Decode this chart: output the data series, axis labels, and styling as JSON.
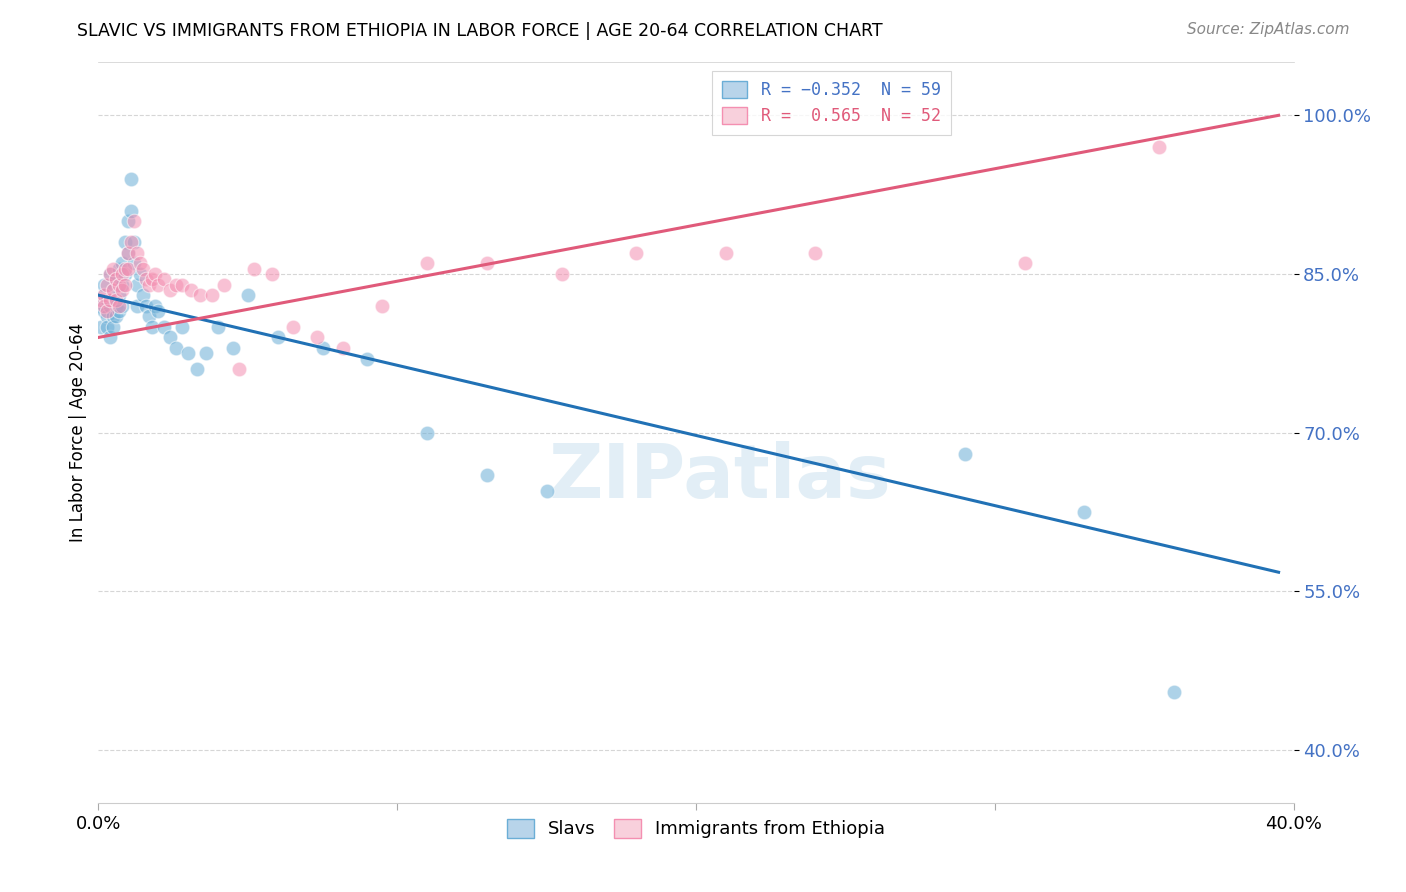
{
  "title": "SLAVIC VS IMMIGRANTS FROM ETHIOPIA IN LABOR FORCE | AGE 20-64 CORRELATION CHART",
  "source": "Source: ZipAtlas.com",
  "ylabel": "In Labor Force | Age 20-64",
  "ytick_values": [
    0.4,
    0.55,
    0.7,
    0.85,
    1.0
  ],
  "ytick_labels": [
    "40.0%",
    "55.0%",
    "70.0%",
    "85.0%",
    "100.0%"
  ],
  "xlim": [
    0.0,
    0.4
  ],
  "ylim": [
    0.35,
    1.05
  ],
  "slavs_color": "#6baed6",
  "ethiopia_color": "#f48fb1",
  "watermark": "ZIPatlas",
  "blue_line": {
    "x0": 0.0,
    "y0": 0.83,
    "x1": 0.395,
    "y1": 0.568
  },
  "pink_line": {
    "x0": 0.0,
    "y0": 0.79,
    "x1": 0.395,
    "y1": 1.0
  },
  "slavs_x": [
    0.001,
    0.001,
    0.002,
    0.002,
    0.002,
    0.003,
    0.003,
    0.003,
    0.004,
    0.004,
    0.004,
    0.005,
    0.005,
    0.005,
    0.006,
    0.006,
    0.006,
    0.007,
    0.007,
    0.007,
    0.008,
    0.008,
    0.008,
    0.009,
    0.009,
    0.01,
    0.01,
    0.011,
    0.011,
    0.012,
    0.012,
    0.013,
    0.013,
    0.014,
    0.015,
    0.016,
    0.017,
    0.018,
    0.019,
    0.02,
    0.022,
    0.024,
    0.026,
    0.028,
    0.03,
    0.033,
    0.036,
    0.04,
    0.045,
    0.05,
    0.06,
    0.075,
    0.09,
    0.11,
    0.13,
    0.15,
    0.29,
    0.33,
    0.36
  ],
  "slavs_y": [
    0.82,
    0.8,
    0.815,
    0.83,
    0.84,
    0.825,
    0.81,
    0.8,
    0.85,
    0.82,
    0.79,
    0.835,
    0.81,
    0.8,
    0.845,
    0.82,
    0.81,
    0.855,
    0.83,
    0.815,
    0.86,
    0.84,
    0.82,
    0.88,
    0.85,
    0.9,
    0.87,
    0.94,
    0.91,
    0.88,
    0.86,
    0.84,
    0.82,
    0.85,
    0.83,
    0.82,
    0.81,
    0.8,
    0.82,
    0.815,
    0.8,
    0.79,
    0.78,
    0.8,
    0.775,
    0.76,
    0.775,
    0.8,
    0.78,
    0.83,
    0.79,
    0.78,
    0.77,
    0.7,
    0.66,
    0.645,
    0.68,
    0.625,
    0.455
  ],
  "ethiopia_x": [
    0.001,
    0.002,
    0.002,
    0.003,
    0.003,
    0.004,
    0.004,
    0.005,
    0.005,
    0.006,
    0.006,
    0.007,
    0.007,
    0.008,
    0.008,
    0.009,
    0.009,
    0.01,
    0.01,
    0.011,
    0.012,
    0.013,
    0.014,
    0.015,
    0.016,
    0.017,
    0.018,
    0.019,
    0.02,
    0.022,
    0.024,
    0.026,
    0.028,
    0.031,
    0.034,
    0.038,
    0.042,
    0.047,
    0.052,
    0.058,
    0.065,
    0.073,
    0.082,
    0.095,
    0.11,
    0.13,
    0.155,
    0.18,
    0.21,
    0.24,
    0.31,
    0.355
  ],
  "ethiopia_y": [
    0.825,
    0.83,
    0.82,
    0.84,
    0.815,
    0.85,
    0.825,
    0.855,
    0.835,
    0.845,
    0.825,
    0.84,
    0.82,
    0.85,
    0.835,
    0.855,
    0.84,
    0.87,
    0.855,
    0.88,
    0.9,
    0.87,
    0.86,
    0.855,
    0.845,
    0.84,
    0.845,
    0.85,
    0.84,
    0.845,
    0.835,
    0.84,
    0.84,
    0.835,
    0.83,
    0.83,
    0.84,
    0.76,
    0.855,
    0.85,
    0.8,
    0.79,
    0.78,
    0.82,
    0.86,
    0.86,
    0.85,
    0.87,
    0.87,
    0.87,
    0.86,
    0.97
  ]
}
